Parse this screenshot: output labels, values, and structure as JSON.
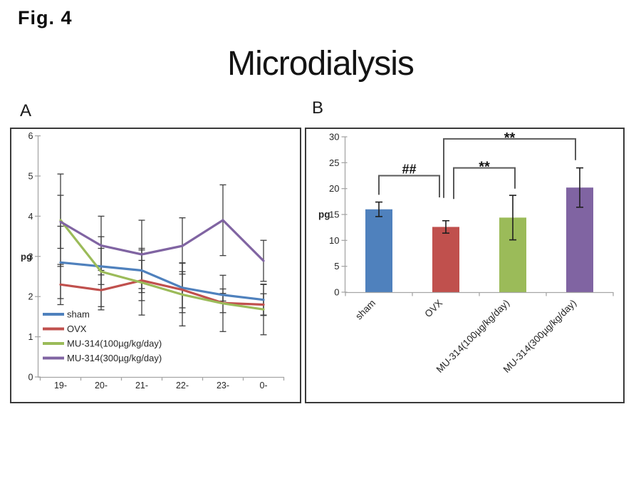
{
  "figure": {
    "label": "Fig. 4",
    "title": "Microdialysis"
  },
  "panelA": {
    "label": "A",
    "chart_data": {
      "type": "line",
      "ylabel": "pg",
      "ylim": [
        0,
        6
      ],
      "yticks": [
        0,
        1,
        2,
        3,
        4,
        5,
        6
      ],
      "categories": [
        "19-",
        "20-",
        "21-",
        "22-",
        "23-",
        "0-"
      ],
      "series": [
        {
          "name": "sham",
          "color": "#4F81BD",
          "values": [
            2.85,
            2.75,
            2.65,
            2.22,
            2.04,
            1.92
          ],
          "errors": [
            0.9,
            0.45,
            0.55,
            0.62,
            0.15,
            0.38
          ]
        },
        {
          "name": "OVX",
          "color": "#C0504D",
          "values": [
            2.3,
            2.16,
            2.4,
            2.17,
            1.84,
            1.8
          ],
          "errors": [
            0.5,
            0.49,
            0.5,
            0.45,
            0.24,
            0.27
          ]
        },
        {
          "name": "MU-314(100µg/kg/day)",
          "color": "#9BBB59",
          "values": [
            3.9,
            2.62,
            2.35,
            2.05,
            1.83,
            1.68
          ],
          "errors": [
            1.15,
            0.87,
            0.81,
            0.78,
            0.7,
            0.63
          ]
        },
        {
          "name": "MU-314(300µg/kg/day)",
          "color": "#8064A2",
          "values": [
            3.86,
            3.27,
            3.05,
            3.26,
            3.9,
            2.89
          ],
          "errors": [
            0.66,
            0.73,
            0.85,
            0.7,
            0.88,
            0.51
          ]
        }
      ],
      "legend_position": "lower-left",
      "grid": false,
      "axis_color": "#A6A6A6",
      "error_color": "#3F3F3F",
      "text_color": "#262626"
    }
  },
  "panelB": {
    "label": "B",
    "chart_data": {
      "type": "bar",
      "ylabel": "pg",
      "ylim": [
        0,
        30
      ],
      "yticks": [
        0,
        5,
        10,
        15,
        20,
        25,
        30
      ],
      "categories": [
        "sham",
        "OVX",
        "MU-314(100µg/kg/day)",
        "MU-314(300µg/kg/day)"
      ],
      "values": [
        16.0,
        12.6,
        14.4,
        20.2
      ],
      "errors": [
        1.4,
        1.2,
        4.3,
        3.8
      ],
      "colors": [
        "#4F81BD",
        "#C0504D",
        "#9BBB59",
        "#8064A2"
      ],
      "significance": [
        {
          "label": "##",
          "from": 0,
          "to": 1,
          "from_dx": 0,
          "to_dx": -9,
          "top": 22.5,
          "from_drop": 18.8,
          "to_drop": 18.3
        },
        {
          "label": "**",
          "from": 1,
          "to": 2,
          "from_dx": 11,
          "to_dx": 3,
          "top": 24.0,
          "from_drop": 18.0,
          "to_drop": 20.0
        },
        {
          "label": "**",
          "from": 1,
          "to": 3,
          "from_dx": -3,
          "to_dx": -6,
          "top": 29.6,
          "from_drop": 18.2,
          "to_drop": 25.5
        }
      ],
      "grid": false,
      "axis_color": "#A6A6A6",
      "error_color": "#1F1F1F",
      "bracket_color": "#595959",
      "text_color": "#262626"
    }
  }
}
